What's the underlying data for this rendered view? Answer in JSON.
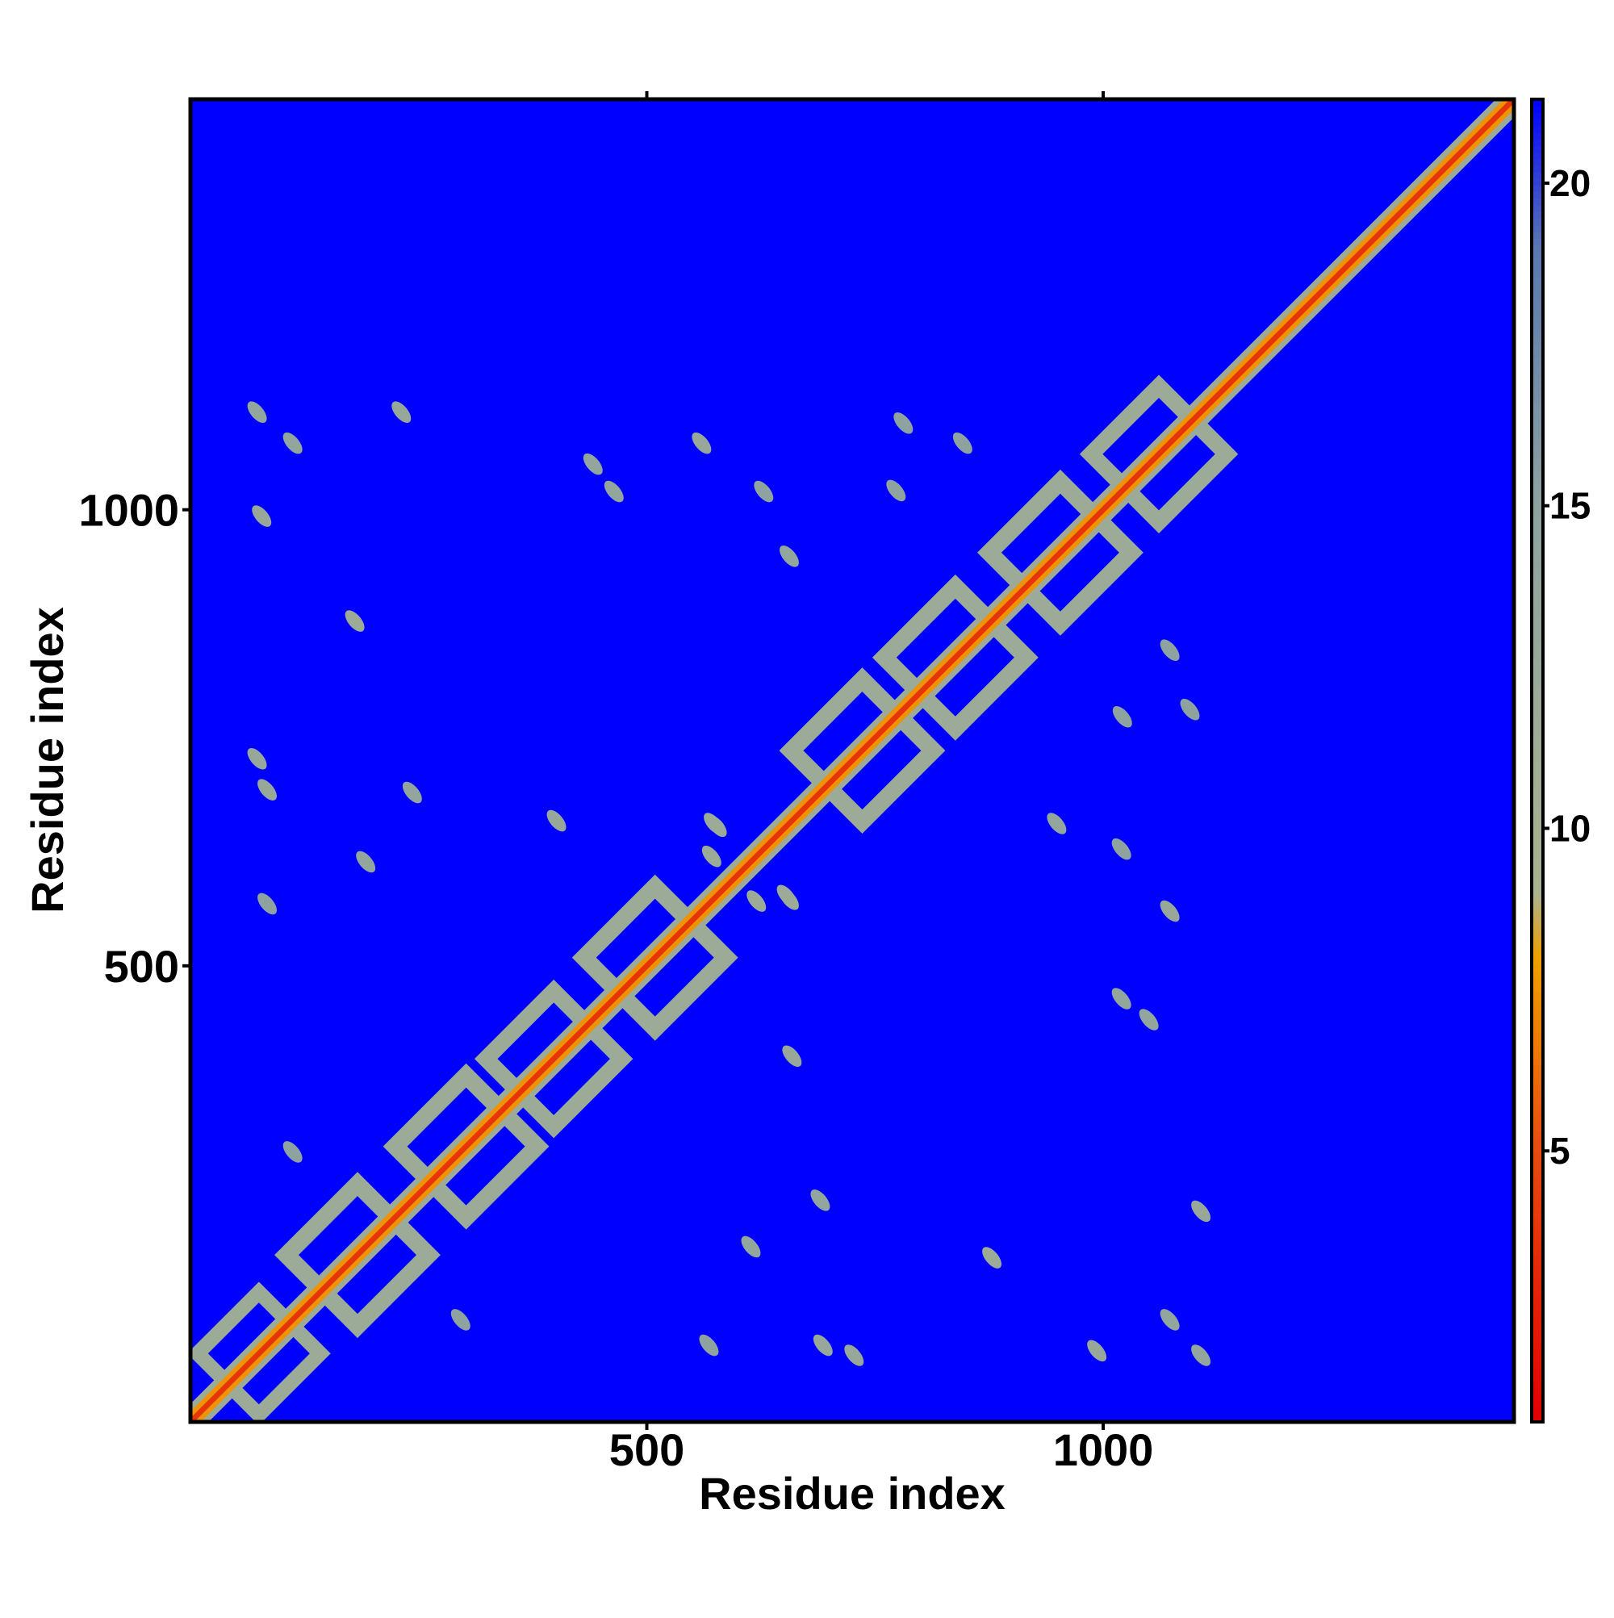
{
  "chart_data": {
    "type": "contact_map",
    "xlabel": "Residue index",
    "ylabel": "Residue index",
    "xlim": [
      0,
      1450
    ],
    "ylim": [
      0,
      1450
    ],
    "xticks": [
      500,
      1000
    ],
    "yticks": [
      500,
      1000
    ],
    "background": "#0000ff",
    "clim": [
      0.8,
      21.3
    ],
    "cticks": [
      5,
      10,
      15,
      20
    ],
    "colorscale": [
      [
        0.8,
        "#e00000"
      ],
      [
        5,
        "#e84a10"
      ],
      [
        8,
        "#f0a000"
      ],
      [
        9,
        "#a9b38f"
      ],
      [
        15,
        "#8ea3a0"
      ],
      [
        19,
        "#5a78b0"
      ],
      [
        21.3,
        "#0000ff"
      ]
    ],
    "diagonal_bands": [
      {
        "offset": 14,
        "value": 12
      },
      {
        "offset": 8,
        "value": 7.5
      },
      {
        "offset": 3,
        "value": 3.8
      }
    ],
    "blocks": [
      {
        "center": 75,
        "size": 95,
        "value": 12
      },
      {
        "center": 183,
        "size": 110,
        "value": 12
      },
      {
        "center": 302,
        "size": 110,
        "value": 12
      },
      {
        "center": 398,
        "size": 105,
        "value": 12
      },
      {
        "center": 509,
        "size": 110,
        "value": 12
      },
      {
        "center": 736,
        "size": 110,
        "value": 12
      },
      {
        "center": 838,
        "size": 110,
        "value": 12
      },
      {
        "center": 953,
        "size": 110,
        "value": 12
      },
      {
        "center": 1061,
        "size": 105,
        "value": 12
      }
    ],
    "contacts": [
      [
        693,
        84,
        13
      ],
      [
        727,
        73,
        13
      ],
      [
        993,
        78,
        13
      ],
      [
        1073,
        112,
        14
      ],
      [
        1107,
        73,
        14
      ],
      [
        878,
        180,
        12
      ],
      [
        1107,
        231,
        13
      ],
      [
        1073,
        560,
        13
      ],
      [
        1050,
        441,
        14
      ],
      [
        1020,
        464,
        14
      ],
      [
        949,
        656,
        14
      ],
      [
        1020,
        628,
        15
      ],
      [
        1021,
        773,
        15
      ],
      [
        1095,
        781,
        15
      ],
      [
        1073,
        846,
        15
      ],
      [
        659,
        401,
        13
      ],
      [
        690,
        243,
        14
      ],
      [
        614,
        192,
        14
      ],
      [
        568,
        84,
        15
      ],
      [
        296,
        112,
        15
      ],
      [
        620,
        571,
        12
      ],
      [
        653,
        577,
        12
      ],
      [
        573,
        656,
        12
      ]
    ]
  }
}
